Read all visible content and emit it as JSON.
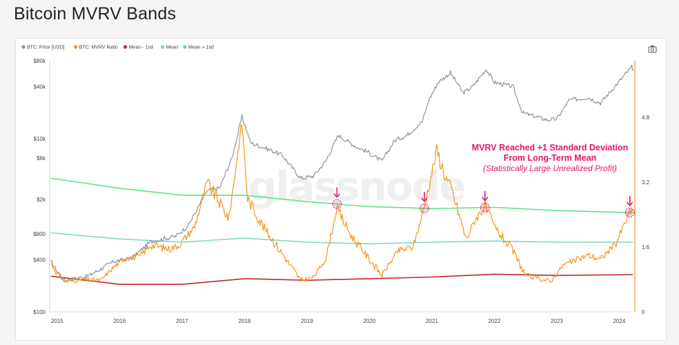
{
  "page": {
    "title": "Bitcoin MVRV Bands"
  },
  "watermark": "glassnode",
  "colors": {
    "price": "#8a9598",
    "mvrv": "#f7931a",
    "mean_minus": "#c0282d",
    "mean": "#7fd8c8",
    "mean_plus": "#5be48a",
    "annotation": "#e6136e"
  },
  "legend": [
    {
      "label": "BTC: Price [USD]",
      "color": "#8a9598"
    },
    {
      "label": "BTC: MVRV Ratio",
      "color": "#f7931a"
    },
    {
      "label": "Mean - 1sd",
      "color": "#c0282d"
    },
    {
      "label": "Mean",
      "color": "#7fd8c8"
    },
    {
      "label": "Mean + 1sd",
      "color": "#5be48a"
    }
  ],
  "toolbar": {
    "camera_icon": "camera-icon"
  },
  "annotation": {
    "line1": "MVRV Reached +1 Standard Deviation",
    "line2": "From Long-Term Mean",
    "line3": "(Statistically Large Unrealized Profit)"
  },
  "chart_data": {
    "type": "line",
    "x_ticks": [
      "2015",
      "2016",
      "2017",
      "2018",
      "2019",
      "2020",
      "2021",
      "2022",
      "2023",
      "2024"
    ],
    "y_left": {
      "scale": "log",
      "ticks": [
        "$80k",
        "$40k",
        "$10k",
        "$6k",
        "$2k",
        "$800",
        "$400",
        "$100"
      ],
      "tick_values": [
        80000,
        40000,
        10000,
        6000,
        2000,
        800,
        400,
        100
      ],
      "range": [
        100,
        80000
      ]
    },
    "y_right": {
      "scale": "linear",
      "ticks": [
        "4.8",
        "3.2",
        "1.6",
        "0"
      ],
      "tick_values": [
        4.8,
        3.2,
        1.6,
        0
      ],
      "range": [
        0,
        6.2
      ]
    },
    "grid": false,
    "legend_position": "top-left",
    "series": [
      {
        "name": "BTC: Price [USD]",
        "axis": "left",
        "points": [
          [
            2014.9,
            380
          ],
          [
            2015.1,
            230
          ],
          [
            2015.5,
            260
          ],
          [
            2015.9,
            380
          ],
          [
            2016.2,
            420
          ],
          [
            2016.5,
            650
          ],
          [
            2016.9,
            750
          ],
          [
            2017.1,
            1000
          ],
          [
            2017.4,
            2500
          ],
          [
            2017.6,
            2700
          ],
          [
            2017.8,
            6000
          ],
          [
            2017.96,
            18000
          ],
          [
            2018.1,
            9000
          ],
          [
            2018.4,
            7500
          ],
          [
            2018.6,
            6500
          ],
          [
            2018.9,
            3500
          ],
          [
            2019.1,
            3700
          ],
          [
            2019.3,
            5500
          ],
          [
            2019.5,
            11000
          ],
          [
            2019.8,
            8000
          ],
          [
            2019.95,
            7200
          ],
          [
            2020.2,
            5500
          ],
          [
            2020.4,
            9500
          ],
          [
            2020.6,
            11000
          ],
          [
            2020.85,
            16000
          ],
          [
            2020.95,
            28000
          ],
          [
            2021.1,
            45000
          ],
          [
            2021.3,
            58000
          ],
          [
            2021.5,
            34000
          ],
          [
            2021.65,
            40000
          ],
          [
            2021.87,
            64000
          ],
          [
            2022.0,
            45000
          ],
          [
            2022.3,
            40000
          ],
          [
            2022.45,
            20000
          ],
          [
            2022.85,
            16500
          ],
          [
            2023.0,
            17000
          ],
          [
            2023.2,
            28000
          ],
          [
            2023.5,
            30000
          ],
          [
            2023.7,
            26000
          ],
          [
            2023.95,
            42000
          ],
          [
            2024.2,
            68000
          ],
          [
            2024.22,
            62000
          ]
        ]
      },
      {
        "name": "BTC: MVRV Ratio",
        "axis": "right",
        "points": [
          [
            2014.9,
            1.2
          ],
          [
            2015.0,
            0.95
          ],
          [
            2015.15,
            0.75
          ],
          [
            2015.4,
            0.8
          ],
          [
            2015.7,
            0.78
          ],
          [
            2015.9,
            1.1
          ],
          [
            2016.1,
            1.35
          ],
          [
            2016.3,
            1.35
          ],
          [
            2016.5,
            1.65
          ],
          [
            2016.8,
            1.55
          ],
          [
            2016.95,
            1.65
          ],
          [
            2017.2,
            2.1
          ],
          [
            2017.4,
            3.2
          ],
          [
            2017.6,
            2.7
          ],
          [
            2017.75,
            2.3
          ],
          [
            2017.96,
            4.7
          ],
          [
            2018.05,
            2.8
          ],
          [
            2018.3,
            2.1
          ],
          [
            2018.6,
            1.45
          ],
          [
            2018.9,
            0.78
          ],
          [
            2019.1,
            0.85
          ],
          [
            2019.3,
            1.3
          ],
          [
            2019.48,
            2.55
          ],
          [
            2019.7,
            1.9
          ],
          [
            2019.9,
            1.5
          ],
          [
            2020.2,
            0.9
          ],
          [
            2020.45,
            1.5
          ],
          [
            2020.7,
            1.6
          ],
          [
            2020.88,
            2.6
          ],
          [
            2020.98,
            3.3
          ],
          [
            2021.08,
            4.0
          ],
          [
            2021.2,
            3.4
          ],
          [
            2021.32,
            3.0
          ],
          [
            2021.55,
            1.8
          ],
          [
            2021.7,
            2.3
          ],
          [
            2021.85,
            2.6
          ],
          [
            2022.0,
            2.1
          ],
          [
            2022.3,
            1.5
          ],
          [
            2022.5,
            0.9
          ],
          [
            2022.9,
            0.75
          ],
          [
            2023.1,
            1.15
          ],
          [
            2023.5,
            1.4
          ],
          [
            2023.7,
            1.3
          ],
          [
            2023.95,
            1.7
          ],
          [
            2024.15,
            2.4
          ],
          [
            2024.22,
            2.5
          ]
        ]
      },
      {
        "name": "Mean + 1sd",
        "axis": "right",
        "points": [
          [
            2014.9,
            3.3
          ],
          [
            2016.0,
            3.05
          ],
          [
            2017.0,
            2.88
          ],
          [
            2018.0,
            2.88
          ],
          [
            2019.0,
            2.72
          ],
          [
            2020.0,
            2.6
          ],
          [
            2021.0,
            2.55
          ],
          [
            2022.0,
            2.58
          ],
          [
            2023.0,
            2.5
          ],
          [
            2024.22,
            2.45
          ]
        ]
      },
      {
        "name": "Mean",
        "axis": "right",
        "points": [
          [
            2014.9,
            1.95
          ],
          [
            2016.0,
            1.8
          ],
          [
            2017.0,
            1.72
          ],
          [
            2018.0,
            1.82
          ],
          [
            2019.0,
            1.72
          ],
          [
            2020.0,
            1.68
          ],
          [
            2021.0,
            1.72
          ],
          [
            2022.0,
            1.75
          ],
          [
            2023.0,
            1.72
          ],
          [
            2024.22,
            1.72
          ]
        ]
      },
      {
        "name": "Mean - 1sd",
        "axis": "right",
        "points": [
          [
            2014.9,
            0.88
          ],
          [
            2016.0,
            0.68
          ],
          [
            2017.0,
            0.68
          ],
          [
            2018.0,
            0.82
          ],
          [
            2019.0,
            0.78
          ],
          [
            2020.0,
            0.82
          ],
          [
            2021.0,
            0.86
          ],
          [
            2022.0,
            0.93
          ],
          [
            2023.0,
            0.9
          ],
          [
            2024.22,
            0.92
          ]
        ]
      }
    ],
    "highlights": [
      {
        "x": 2019.48,
        "series": "MVRV touches Mean + 1sd"
      },
      {
        "x": 2020.88,
        "series": "MVRV touches Mean + 1sd"
      },
      {
        "x": 2021.85,
        "series": "MVRV touches Mean + 1sd"
      },
      {
        "x": 2024.17,
        "series": "MVRV touches Mean + 1sd"
      }
    ]
  }
}
